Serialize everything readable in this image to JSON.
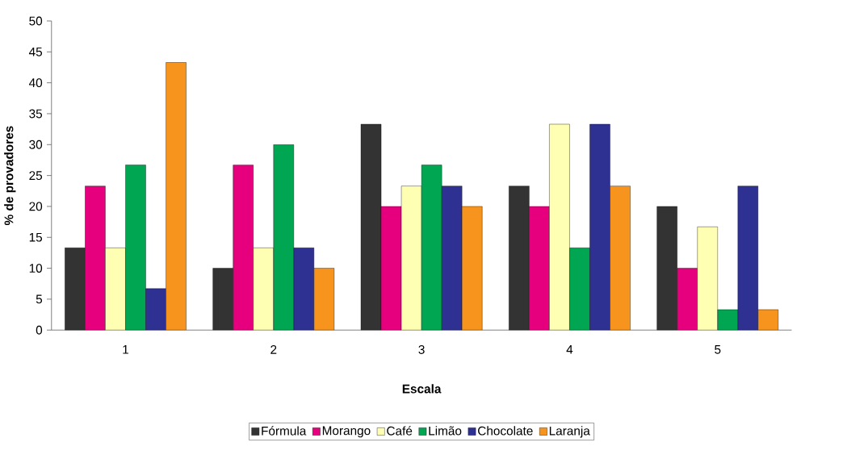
{
  "chart_data": {
    "type": "bar",
    "xlabel": "Escala",
    "ylabel": "% de provadores",
    "categories": [
      "1",
      "2",
      "3",
      "4",
      "5"
    ],
    "series": [
      {
        "name": "Fórmula",
        "color": "#333333",
        "values": [
          13.3,
          10,
          33.3,
          23.3,
          20
        ]
      },
      {
        "name": "Morango",
        "color": "#e6007e",
        "values": [
          23.3,
          26.7,
          20,
          20,
          10
        ]
      },
      {
        "name": "Café",
        "color": "#ffffb3",
        "values": [
          13.3,
          13.3,
          23.3,
          33.3,
          16.7
        ]
      },
      {
        "name": "Limão",
        "color": "#00a651",
        "values": [
          26.7,
          30,
          26.7,
          13.3,
          3.3
        ]
      },
      {
        "name": "Chocolate",
        "color": "#2e3192",
        "values": [
          6.7,
          13.3,
          23.3,
          33.3,
          23.3
        ]
      },
      {
        "name": "Laranja",
        "color": "#f7941d",
        "values": [
          43.3,
          10,
          20,
          23.3,
          3.3
        ]
      }
    ],
    "ylim": [
      0,
      50
    ],
    "yticks": [
      0,
      5,
      10,
      15,
      20,
      25,
      30,
      35,
      40,
      45,
      50
    ],
    "grid": false,
    "legend": "bottom"
  }
}
